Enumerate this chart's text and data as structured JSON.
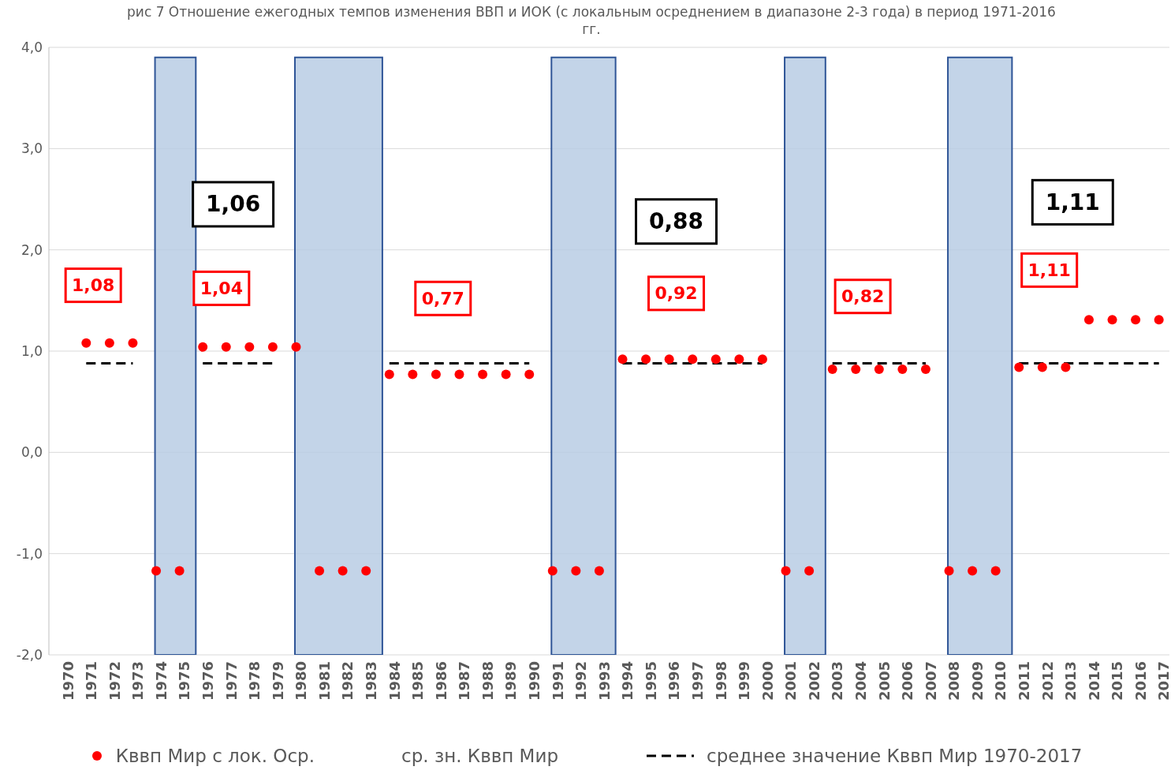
{
  "chart_data": {
    "type": "scatter",
    "title": "рис 7 Отношение ежегодных темпов изменения ВВП и ИОК (с локальным осреднением в диапазоне 2-3 года) в период 1971-2016 гг.",
    "categories": [
      "1970",
      "1971",
      "1972",
      "1973",
      "1974",
      "1975",
      "1976",
      "1977",
      "1978",
      "1979",
      "1980",
      "1981",
      "1982",
      "1983",
      "1984",
      "1985",
      "1986",
      "1987",
      "1988",
      "1989",
      "1990",
      "1991",
      "1992",
      "1993",
      "1994",
      "1995",
      "1996",
      "1997",
      "1998",
      "1999",
      "2000",
      "2001",
      "2002",
      "2003",
      "2004",
      "2005",
      "2006",
      "2007",
      "2008",
      "2009",
      "2010",
      "2011",
      "2012",
      "2013",
      "2014",
      "2015",
      "2016",
      "2017"
    ],
    "series": [
      {
        "name": "Кввп Мир с лок. Оср.",
        "color": "#ff0000",
        "marker": "circle",
        "values": [
          null,
          1.08,
          1.08,
          1.08,
          -1.17,
          -1.17,
          1.04,
          1.04,
          1.04,
          1.04,
          1.04,
          -1.17,
          -1.17,
          -1.17,
          0.77,
          0.77,
          0.77,
          0.77,
          0.77,
          0.77,
          0.77,
          -1.17,
          -1.17,
          -1.17,
          0.92,
          0.92,
          0.92,
          0.92,
          0.92,
          0.92,
          0.92,
          -1.17,
          -1.17,
          0.82,
          0.82,
          0.82,
          0.82,
          0.82,
          -1.17,
          -1.17,
          -1.17,
          0.84,
          0.84,
          0.84,
          1.31,
          1.31,
          1.31,
          1.31
        ]
      },
      {
        "name": "среднее значение Кввп Мир 1970-2017",
        "type": "line",
        "color": "#000000",
        "line_style": "dashed",
        "marker": "none",
        "values": [
          null,
          0.88,
          0.88,
          0.88,
          null,
          null,
          0.88,
          0.88,
          0.88,
          0.88,
          null,
          null,
          null,
          null,
          0.88,
          0.88,
          0.88,
          0.88,
          0.88,
          0.88,
          0.88,
          null,
          null,
          null,
          0.88,
          0.88,
          0.88,
          0.88,
          0.88,
          0.88,
          0.88,
          null,
          null,
          0.88,
          0.88,
          0.88,
          0.88,
          0.88,
          null,
          null,
          null,
          0.88,
          0.88,
          0.88,
          0.88,
          0.88,
          0.88,
          0.88
        ]
      }
    ],
    "bands": [
      {
        "axis": "x",
        "from": "1974",
        "to": "1975",
        "color": "#b8cce4"
      },
      {
        "axis": "x",
        "from": "1980",
        "to": "1983",
        "color": "#b8cce4"
      },
      {
        "axis": "x",
        "from": "1991",
        "to": "1993",
        "color": "#b8cce4"
      },
      {
        "axis": "x",
        "from": "2001",
        "to": "2002",
        "color": "#b8cce4"
      },
      {
        "axis": "x",
        "from": "2008",
        "to": "2010",
        "color": "#b8cce4"
      }
    ],
    "annotations": [
      "1,06",
      "0,88",
      "1,11",
      "1,08",
      "1,04",
      "0,77",
      "0,92",
      "0,82",
      "1,11",
      "ср. зн. Кввп Мир"
    ],
    "ylim": [
      -2,
      4
    ],
    "yticks": [
      {
        "value": -2,
        "label": "-2,0"
      },
      {
        "value": -1,
        "label": "-1,0"
      },
      {
        "value": 0,
        "label": "0,0"
      },
      {
        "value": 1,
        "label": "1,0"
      },
      {
        "value": 2,
        "label": "2,0"
      },
      {
        "value": 3,
        "label": "3,0"
      },
      {
        "value": 4,
        "label": "4,0"
      }
    ],
    "grid": "y",
    "legend": "bottom"
  }
}
